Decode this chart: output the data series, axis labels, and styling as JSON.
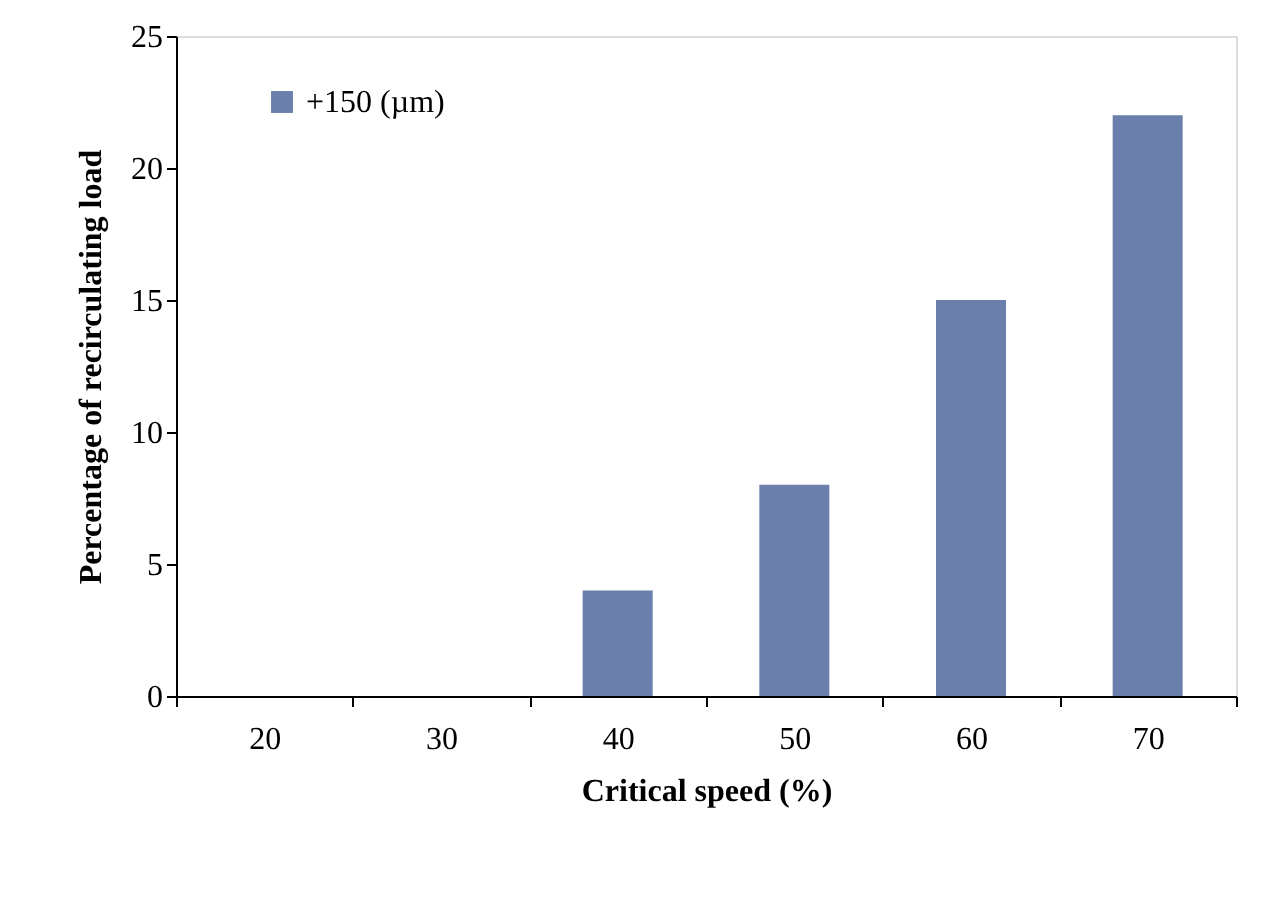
{
  "chart_data": {
    "type": "bar",
    "xlabel": "Critical speed (%)",
    "ylabel": "Percentage of recirculating load",
    "categories": [
      "20",
      "30",
      "40",
      "50",
      "60",
      "70"
    ],
    "series": [
      {
        "name": "+150 (µm)",
        "color": "#6a7fab",
        "values": [
          0,
          0,
          4,
          8,
          15,
          22
        ]
      }
    ],
    "ylim": [
      0,
      25
    ],
    "yticks": [
      0,
      5,
      10,
      15,
      20,
      25
    ],
    "grid": false,
    "legend": "top left"
  }
}
